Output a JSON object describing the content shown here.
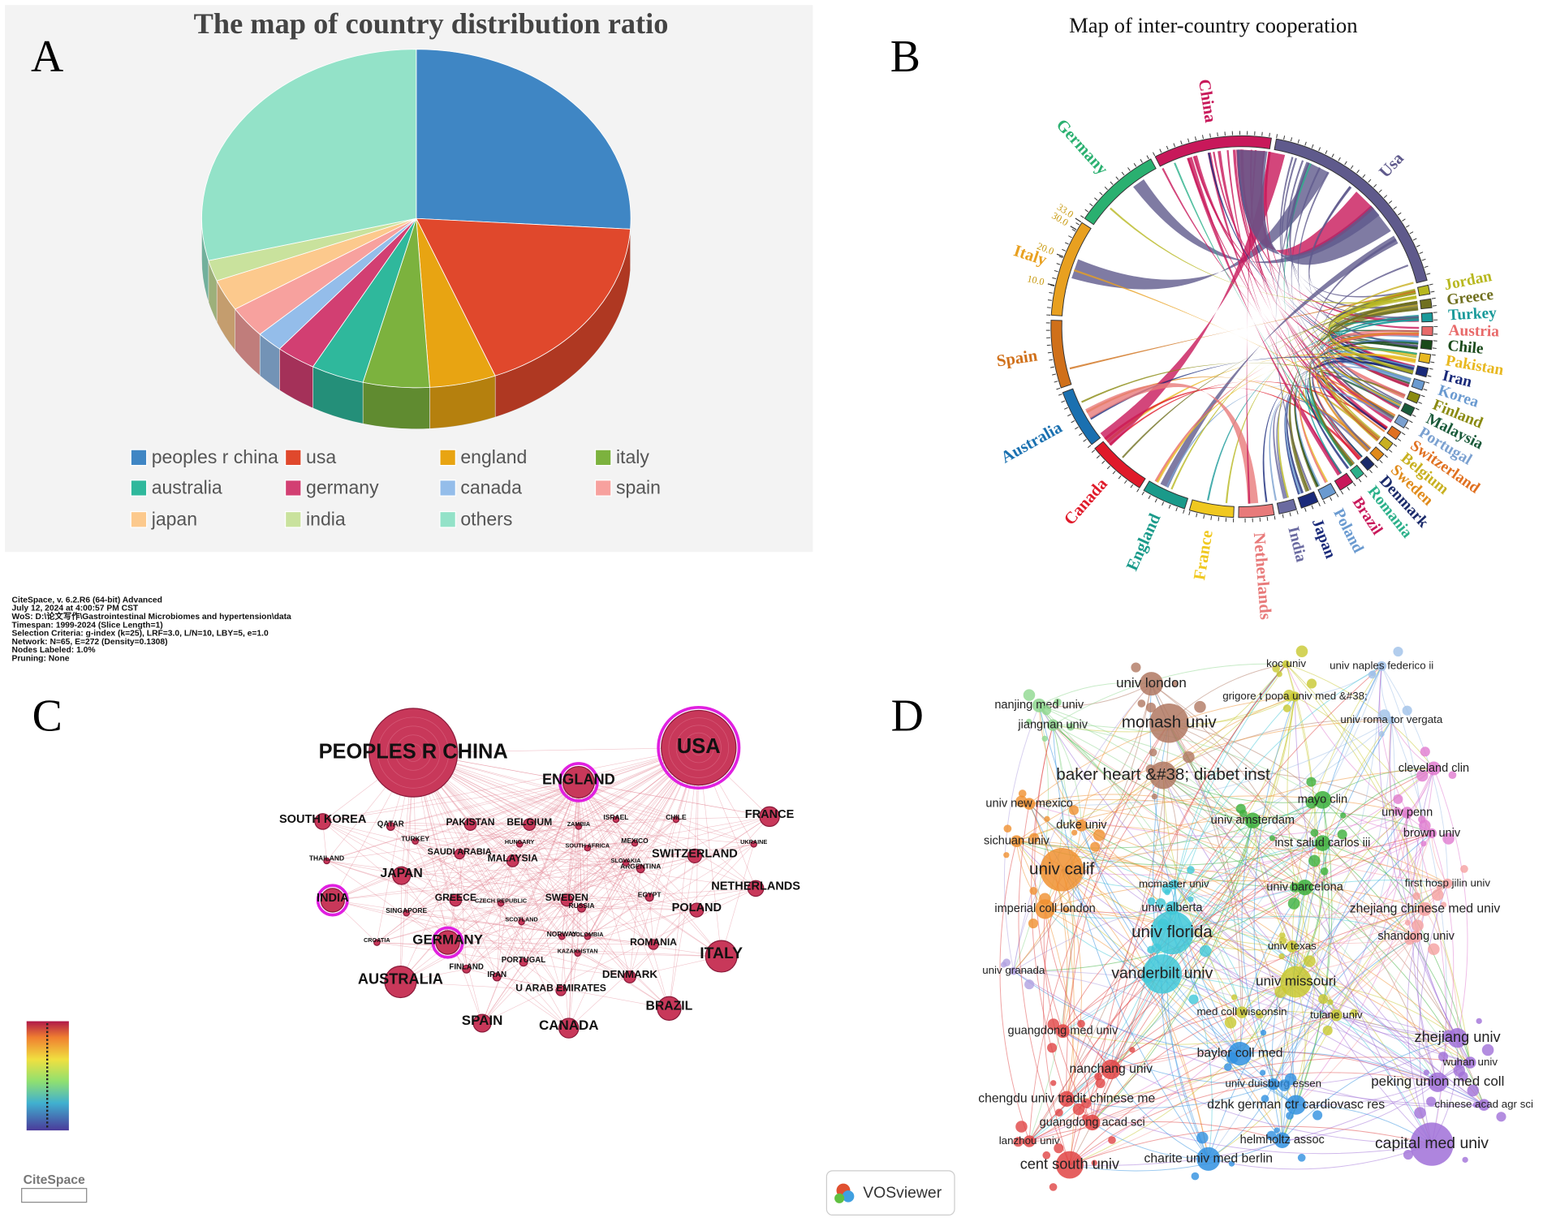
{
  "panel_labels": [
    "A",
    "B",
    "C",
    "D"
  ],
  "chart_data": [
    {
      "type": "pie",
      "title": "The map of country distribution ratio",
      "categories": [
        "peoples r china",
        "usa",
        "england",
        "italy",
        "australia",
        "germany",
        "canada",
        "spain",
        "japan",
        "india",
        "others"
      ],
      "values": [
        26,
        18,
        5,
        5,
        4,
        3,
        2,
        3,
        3,
        2,
        29
      ],
      "colors": [
        "#3f86c4",
        "#e0482c",
        "#e8a412",
        "#7cb23e",
        "#2fb89c",
        "#d23f72",
        "#94bdea",
        "#f7a19e",
        "#fcc98d",
        "#c9e29d",
        "#93e2c8"
      ]
    },
    {
      "type": "chord",
      "title": "Map of inter-country cooperation",
      "categories": [
        "China",
        "Usa",
        "Jordan",
        "Greece",
        "Turkey",
        "Austria",
        "Chile",
        "Pakistan",
        "Iran",
        "Korea",
        "Finland",
        "Malaysia",
        "Portugal",
        "Switzerland",
        "Belgium",
        "Sweden",
        "Denmark",
        "Romania",
        "Brazil",
        "Poland",
        "Japan",
        "India",
        "Netherlands",
        "France",
        "England",
        "Canada",
        "Australia",
        "Spain",
        "Italy",
        "Germany"
      ],
      "values": [
        40,
        73,
        3,
        3,
        3,
        3,
        3,
        3,
        3,
        3,
        3,
        3,
        3,
        3,
        3,
        3,
        3,
        3,
        5,
        5,
        6,
        6,
        12,
        15,
        15,
        20,
        20,
        23,
        33,
        30
      ],
      "colors": [
        "#c8185a",
        "#5f5a8c",
        "#b8b820",
        "#707020",
        "#1a9a9a",
        "#e86a6a",
        "#1a4a1a",
        "#e8b820",
        "#1a2a7a",
        "#6a9ad0",
        "#8a8a10",
        "#1a5a3a",
        "#7aa0d0",
        "#e07020",
        "#c8b020",
        "#e08a1a",
        "#1a2a6a",
        "#2ab08a",
        "#c8185a",
        "#6a9ad0",
        "#1a2a7a",
        "#6a6aa0",
        "#e87a7a",
        "#f0c820",
        "#1a9a8a",
        "#e01a2a",
        "#1a70b0",
        "#d0701a",
        "#e8a020",
        "#2ab070"
      ],
      "ticks": [
        {
          "value": 10,
          "label": "10.0"
        },
        {
          "value": 20,
          "label": "20.0"
        },
        {
          "value": 30,
          "label": "30.0"
        },
        {
          "value": 33,
          "label": "33.0"
        }
      ]
    },
    {
      "type": "network",
      "color": "#c8385a",
      "highlight_color": "#e020e0",
      "edge_color": "#e07a8a",
      "annotations": [
        "CiteSpace, v. 6.2.R6 (64-bit) Advanced",
        "July 12, 2024 at 4:00:57 PM CST",
        "WoS: D:\\论文写作\\Gastrointestinal Microbiomes and hypertension\\data",
        "Timespan: 1999-2024 (Slice Length=1)",
        "Selection Criteria: g-index (k=25), LRF=3.0, L/N=10, LBY=5, e=1.0",
        "Network: N=65, E=272 (Density=0.1308)",
        "Nodes Labeled: 1.0%",
        "Pruning: None"
      ],
      "logo": "CiteSpace",
      "nodes": [
        {
          "label": "PEOPLES R CHINA",
          "highlight": false
        },
        {
          "label": "USA",
          "highlight": true
        },
        {
          "label": "ENGLAND",
          "highlight": true
        },
        {
          "label": "SOUTH KOREA",
          "highlight": false
        },
        {
          "label": "FRANCE",
          "highlight": false
        },
        {
          "label": "INDIA",
          "highlight": true
        },
        {
          "label": "JAPAN",
          "highlight": false
        },
        {
          "label": "SWITZERLAND",
          "highlight": false
        },
        {
          "label": "NETHERLANDS",
          "highlight": false
        },
        {
          "label": "POLAND",
          "highlight": false
        },
        {
          "label": "GERMANY",
          "highlight": true
        },
        {
          "label": "ITALY",
          "highlight": false
        },
        {
          "label": "AUSTRALIA",
          "highlight": false
        },
        {
          "label": "BRAZIL",
          "highlight": false
        },
        {
          "label": "SPAIN",
          "highlight": false
        },
        {
          "label": "CANADA",
          "highlight": false
        },
        {
          "label": "ROMANIA",
          "highlight": false
        },
        {
          "label": "DENMARK",
          "highlight": false
        },
        {
          "label": "U ARAB EMIRATES",
          "highlight": false
        },
        {
          "label": "MALAYSIA",
          "highlight": false
        },
        {
          "label": "SWEDEN",
          "highlight": false
        },
        {
          "label": "GREECE",
          "highlight": false
        },
        {
          "label": "PAKISTAN",
          "highlight": false
        },
        {
          "label": "BELGIUM",
          "highlight": false
        },
        {
          "label": "SAUDI ARABIA",
          "highlight": false
        },
        {
          "label": "QATAR",
          "highlight": false
        },
        {
          "label": "TURKEY",
          "highlight": false
        },
        {
          "label": "THAILAND",
          "highlight": false
        },
        {
          "label": "SINGAPORE",
          "highlight": false
        },
        {
          "label": "CROATIA",
          "highlight": false
        },
        {
          "label": "FINLAND",
          "highlight": false
        },
        {
          "label": "IRAN",
          "highlight": false
        },
        {
          "label": "PORTUGAL",
          "highlight": false
        },
        {
          "label": "RUSSIA",
          "highlight": false
        },
        {
          "label": "EGYPT",
          "highlight": false
        },
        {
          "label": "ARGENTINA",
          "highlight": false
        },
        {
          "label": "MEXICO",
          "highlight": false
        },
        {
          "label": "ISRAEL",
          "highlight": false
        },
        {
          "label": "CHILE",
          "highlight": false
        },
        {
          "label": "ZAMBIA",
          "highlight": false
        },
        {
          "label": "SOUTH AFRICA",
          "highlight": false
        },
        {
          "label": "UKRAINE",
          "highlight": false
        },
        {
          "label": "HUNGARY",
          "highlight": false
        },
        {
          "label": "CZECH REPUBLIC",
          "highlight": false
        },
        {
          "label": "SCOTLAND",
          "highlight": false
        },
        {
          "label": "NORWAY",
          "highlight": false
        },
        {
          "label": "COLOMBIA",
          "highlight": false
        },
        {
          "label": "KAZAKHSTAN",
          "highlight": false
        },
        {
          "label": "SLOVAKIA",
          "highlight": false
        }
      ]
    },
    {
      "type": "network",
      "logo": "VOSviewer",
      "nodes": [
        {
          "label": "univ london",
          "color": "#b07862"
        },
        {
          "label": "monash univ",
          "color": "#b07862"
        },
        {
          "label": "baker heart &#38; diabet inst",
          "color": "#b07862"
        },
        {
          "label": "koc univ",
          "color": "#c8c830"
        },
        {
          "label": "univ naples federico ii",
          "color": "#9fc0e8"
        },
        {
          "label": "grigore t popa univ med &#38;",
          "color": "#c8c830"
        },
        {
          "label": "univ roma tor vergata",
          "color": "#9fc0e8"
        },
        {
          "label": "nanjing med univ",
          "color": "#8fd88f"
        },
        {
          "label": "jiangnan univ",
          "color": "#8fd88f"
        },
        {
          "label": "cleveland clin",
          "color": "#e07ad0"
        },
        {
          "label": "mayo clin",
          "color": "#3cb03c"
        },
        {
          "label": "univ new mexico",
          "color": "#f09030"
        },
        {
          "label": "univ amsterdam",
          "color": "#3cb03c"
        },
        {
          "label": "univ penn",
          "color": "#e07ad0"
        },
        {
          "label": "duke univ",
          "color": "#f09030"
        },
        {
          "label": "brown univ",
          "color": "#e07ad0"
        },
        {
          "label": "sichuan univ",
          "color": "#f09030"
        },
        {
          "label": "inst salud carlos iii",
          "color": "#3cb03c"
        },
        {
          "label": "univ calif",
          "color": "#f09030"
        },
        {
          "label": "first hosp jilin univ",
          "color": "#f5a0a0"
        },
        {
          "label": "mcmaster univ",
          "color": "#40c8d8"
        },
        {
          "label": "univ barcelona",
          "color": "#3cb03c"
        },
        {
          "label": "univ alberta",
          "color": "#40c8d8"
        },
        {
          "label": "zhejiang chinese med univ",
          "color": "#f5a0a0"
        },
        {
          "label": "imperial coll london",
          "color": "#f09030"
        },
        {
          "label": "univ florida",
          "color": "#40c8d8"
        },
        {
          "label": "shandong univ",
          "color": "#f5a0a0"
        },
        {
          "label": "univ texas",
          "color": "#c8c830"
        },
        {
          "label": "univ granada",
          "color": "#b0a0e0"
        },
        {
          "label": "vanderbilt univ",
          "color": "#40c8d8"
        },
        {
          "label": "univ missouri",
          "color": "#c8c830"
        },
        {
          "label": "med coll wisconsin",
          "color": "#c8c830"
        },
        {
          "label": "tulane univ",
          "color": "#c8c830"
        },
        {
          "label": "guangdong med univ",
          "color": "#e04444"
        },
        {
          "label": "zhejiang univ",
          "color": "#a070d8"
        },
        {
          "label": "baylor coll med",
          "color": "#3090e0"
        },
        {
          "label": "nanchang univ",
          "color": "#e04444"
        },
        {
          "label": "wuhan univ",
          "color": "#a070d8"
        },
        {
          "label": "peking union med coll",
          "color": "#a070d8"
        },
        {
          "label": "univ duisburg essen",
          "color": "#3090e0"
        },
        {
          "label": "chengdu univ tradit chinese me",
          "color": "#e04444"
        },
        {
          "label": "dzhk german ctr cardiovasc res",
          "color": "#3090e0"
        },
        {
          "label": "chinese acad agr sci",
          "color": "#a070d8"
        },
        {
          "label": "guangdong acad sci",
          "color": "#e04444"
        },
        {
          "label": "helmholtz assoc",
          "color": "#3090e0"
        },
        {
          "label": "lanzhou univ",
          "color": "#e04444"
        },
        {
          "label": "capital med univ",
          "color": "#a070d8"
        },
        {
          "label": "charite univ med berlin",
          "color": "#3090e0"
        },
        {
          "label": "cent south univ",
          "color": "#e04444"
        }
      ]
    }
  ]
}
